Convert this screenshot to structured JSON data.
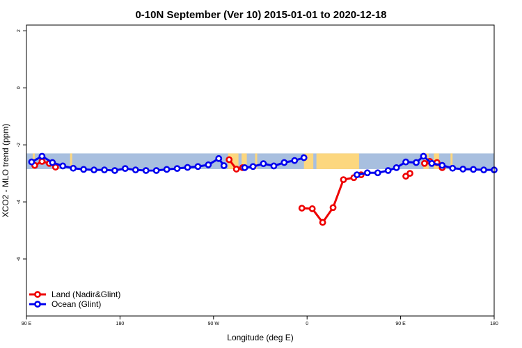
{
  "chart_data": {
    "type": "line",
    "title": "0-10N September (Ver 10)   2015-01-01 to 2020-12-18",
    "xlabel": "Longitude (deg E)",
    "ylabel": "XCO2 - MLO trend (ppm)",
    "xlim": [
      90,
      540
    ],
    "ylim": [
      -8,
      2.2
    ],
    "x_ticks": [
      {
        "value": 90,
        "label": "90 E"
      },
      {
        "value": 180,
        "label": "180"
      },
      {
        "value": 270,
        "label": "90 W"
      },
      {
        "value": 360,
        "label": "0"
      },
      {
        "value": 450,
        "label": "90 E"
      },
      {
        "value": 540,
        "label": "180"
      }
    ],
    "y_ticks": [
      {
        "value": 2,
        "label": "2"
      },
      {
        "value": 0,
        "label": "0"
      },
      {
        "value": -2,
        "label": "-2"
      },
      {
        "value": -4,
        "label": "-4"
      },
      {
        "value": -6,
        "label": "-6"
      }
    ],
    "band": {
      "y_range": [
        -2.3,
        -2.85
      ],
      "ocean_color": "#a8bfdf",
      "land_color": "#fcd77f"
    },
    "land_segments": [
      [
        96,
        98
      ],
      [
        132,
        134
      ],
      [
        284,
        294
      ],
      [
        297,
        302
      ],
      [
        310,
        312
      ],
      [
        357,
        366
      ],
      [
        369,
        410
      ],
      [
        472,
        477
      ],
      [
        482,
        487
      ],
      [
        498,
        500
      ]
    ],
    "legend": {
      "position": "bottom-left"
    },
    "series": [
      {
        "name": "Land (Nadir&Glint)",
        "color": "#ee0000",
        "segments": [
          [
            [
              98,
              -2.72
            ],
            [
              105,
              -2.58
            ],
            [
              112,
              -2.65
            ],
            [
              118,
              -2.78
            ]
          ],
          [
            [
              285,
              -2.52
            ],
            [
              292,
              -2.85
            ],
            [
              298,
              -2.8
            ]
          ],
          [
            [
              355,
              -4.22
            ],
            [
              365,
              -4.24
            ],
            [
              375,
              -4.72
            ],
            [
              385,
              -4.2
            ],
            [
              395,
              -3.22
            ],
            [
              405,
              -3.15
            ],
            [
              412,
              -3.05
            ]
          ],
          [
            [
              455,
              -3.1
            ],
            [
              459,
              -3.0
            ]
          ],
          [
            [
              473,
              -2.65
            ],
            [
              478,
              -2.58
            ],
            [
              485,
              -2.62
            ],
            [
              490,
              -2.8
            ]
          ]
        ]
      },
      {
        "name": "Ocean (Glint)",
        "color": "#0000ee",
        "segments": [
          [
            [
              95,
              -2.6
            ],
            [
              105,
              -2.4
            ],
            [
              115,
              -2.62
            ],
            [
              125,
              -2.74
            ],
            [
              135,
              -2.82
            ],
            [
              145,
              -2.86
            ],
            [
              155,
              -2.88
            ],
            [
              165,
              -2.88
            ],
            [
              175,
              -2.9
            ],
            [
              185,
              -2.83
            ],
            [
              195,
              -2.88
            ],
            [
              205,
              -2.9
            ],
            [
              215,
              -2.9
            ],
            [
              225,
              -2.86
            ],
            [
              235,
              -2.83
            ],
            [
              245,
              -2.79
            ],
            [
              255,
              -2.76
            ],
            [
              265,
              -2.7
            ],
            [
              275,
              -2.48
            ],
            [
              280,
              -2.73
            ]
          ],
          [
            [
              300,
              -2.8
            ],
            [
              308,
              -2.76
            ],
            [
              318,
              -2.66
            ],
            [
              328,
              -2.74
            ],
            [
              338,
              -2.62
            ],
            [
              348,
              -2.55
            ],
            [
              357,
              -2.45
            ]
          ],
          [
            [
              408,
              -3.05
            ],
            [
              418,
              -2.98
            ],
            [
              428,
              -2.98
            ],
            [
              438,
              -2.9
            ],
            [
              446,
              -2.8
            ],
            [
              455,
              -2.6
            ],
            [
              465,
              -2.62
            ],
            [
              472,
              -2.4
            ],
            [
              480,
              -2.65
            ],
            [
              490,
              -2.72
            ],
            [
              500,
              -2.82
            ],
            [
              510,
              -2.85
            ],
            [
              520,
              -2.86
            ],
            [
              530,
              -2.88
            ],
            [
              540,
              -2.88
            ]
          ]
        ]
      }
    ]
  }
}
